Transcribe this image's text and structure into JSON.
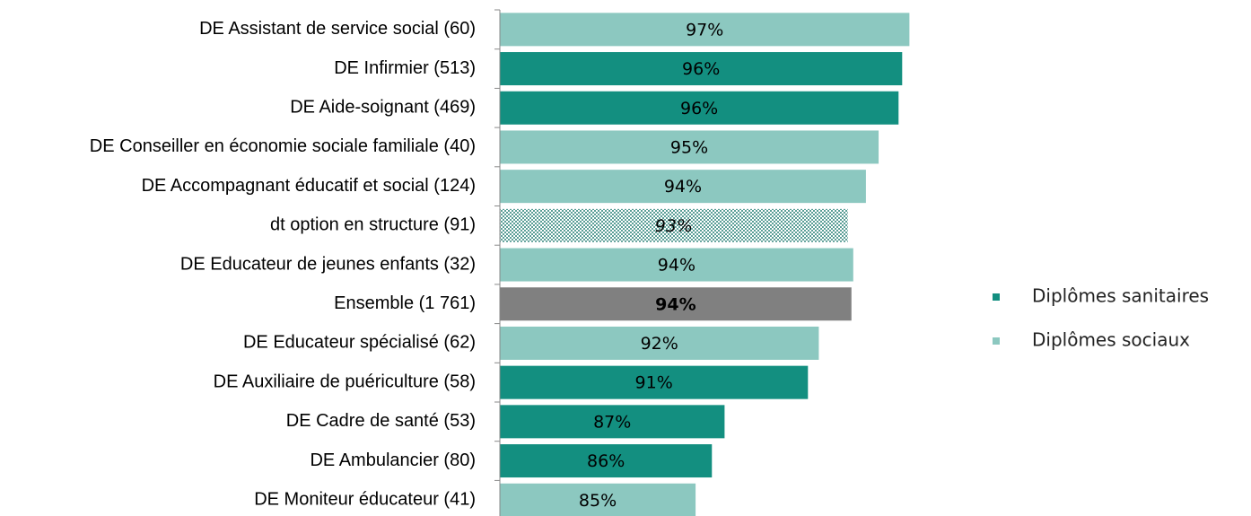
{
  "chart_data": {
    "type": "bar",
    "orientation": "horizontal",
    "categories": [
      "DE Assistant de service social (60)",
      "DE Infirmier (513)",
      "DE Aide-soignant (469)",
      "DE Conseiller en économie sociale familiale (40)",
      "DE Accompagnant éducatif et social (124)",
      "dt option en structure (91)",
      "DE Educateur de jeunes enfants (32)",
      "Ensemble (1 761)",
      "DE Educateur spécialisé (62)",
      "DE Auxiliaire de puériculture (58)",
      "DE Cadre de santé (53)",
      "DE Ambulancier (80)",
      "DE Moniteur éducateur (41)"
    ],
    "values": [
      96.8,
      96.4,
      96.2,
      95.1,
      94.4,
      93.4,
      93.7,
      93.6,
      91.8,
      91.2,
      86.6,
      85.9,
      85.0
    ],
    "value_labels": [
      "97%",
      "96%",
      "96%",
      "95%",
      "94%",
      "93%",
      "94%",
      "94%",
      "92%",
      "91%",
      "87%",
      "86%",
      "85%"
    ],
    "colors": [
      "#8cc8c0",
      "#138f80",
      "#138f80",
      "#8cc8c0",
      "#8cc8c0",
      "#8cc8c0",
      "#8cc8c0",
      "#808080",
      "#8cc8c0",
      "#138f80",
      "#138f80",
      "#138f80",
      "#8cc8c0"
    ],
    "patterns": [
      null,
      null,
      null,
      null,
      null,
      "dots",
      null,
      null,
      null,
      null,
      null,
      null,
      null
    ],
    "label_styles": [
      null,
      null,
      null,
      null,
      null,
      "italic",
      null,
      "bold",
      null,
      null,
      null,
      null,
      null
    ],
    "xlim": [
      74.2,
      100
    ],
    "legend": [
      {
        "name": "Diplômes sanitaires",
        "color": "#138f80"
      },
      {
        "name": "Diplômes sociaux",
        "color": "#8cc8c0"
      }
    ],
    "legend_position": "right"
  }
}
